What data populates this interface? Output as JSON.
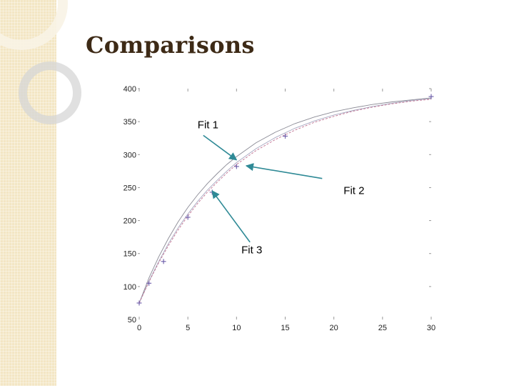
{
  "slide": {
    "title": "Comparisons"
  },
  "chart_data": {
    "type": "line",
    "title": "",
    "xlabel": "",
    "ylabel": "",
    "xlim": [
      0,
      30
    ],
    "ylim": [
      50,
      400
    ],
    "x_ticks": [
      0,
      5,
      10,
      15,
      20,
      25,
      30
    ],
    "y_ticks": [
      50,
      100,
      150,
      200,
      250,
      300,
      350,
      400
    ],
    "grid": false,
    "series": [
      {
        "color": "#8a8a95",
        "x": [
          0,
          1,
          2,
          3,
          4,
          5,
          6,
          7,
          8,
          9,
          10,
          12,
          14,
          16,
          18,
          20,
          22,
          24,
          26,
          28,
          30
        ],
        "y": [
          75,
          113,
          145,
          173,
          198,
          220,
          239,
          256,
          271,
          285,
          297,
          318,
          334,
          347,
          357,
          365,
          371,
          376,
          380,
          383,
          386
        ]
      },
      {
        "color": "#a8a8c0",
        "x": [
          0,
          1,
          2,
          3,
          4,
          5,
          6,
          7,
          8,
          9,
          10,
          12,
          14,
          16,
          18,
          20,
          22,
          24,
          26,
          28,
          30
        ],
        "y": [
          75,
          108,
          138,
          165,
          189,
          210,
          229,
          246,
          261,
          275,
          288,
          309,
          326,
          340,
          351,
          360,
          367,
          373,
          378,
          382,
          385
        ]
      },
      {
        "color": "#c07090",
        "x": [
          0,
          1,
          2,
          3,
          4,
          5,
          6,
          7,
          8,
          9,
          10,
          12,
          14,
          16,
          18,
          20,
          22,
          24,
          26,
          28,
          30
        ],
        "y": [
          75,
          107,
          136,
          162,
          186,
          207,
          226,
          243,
          258,
          272,
          285,
          306,
          323,
          337,
          349,
          358,
          366,
          372,
          377,
          381,
          384
        ]
      }
    ],
    "markers": {
      "symbol": "+",
      "color": "#6a5aa8",
      "x": [
        0,
        1,
        2.5,
        5,
        7.5,
        10,
        15,
        30
      ],
      "y": [
        75,
        105,
        138,
        205,
        243,
        282,
        328,
        388
      ]
    },
    "annotations": [
      {
        "text": "Fit 1",
        "x": 6,
        "y": 340,
        "arrow_to": [
          10,
          292
        ]
      },
      {
        "text": "Fit 2",
        "x": 21,
        "y": 240,
        "arrow_to": [
          11,
          283
        ]
      },
      {
        "text": "Fit 3",
        "x": 10.5,
        "y": 150,
        "arrow_to": [
          7.5,
          245
        ]
      }
    ]
  }
}
